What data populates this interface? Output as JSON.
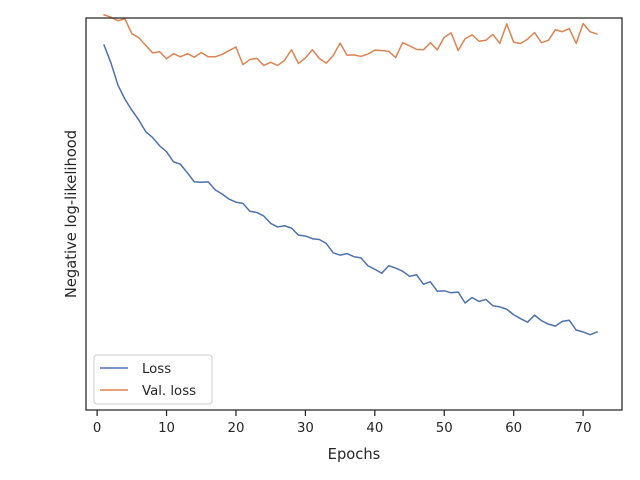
{
  "chart_data": {
    "type": "line",
    "title": "",
    "xlabel": "Epochs",
    "ylabel": "Negative log-likelihood",
    "xlim": [
      -1.6,
      75.6
    ],
    "ylim": [
      0.0,
      1.0
    ],
    "xticks": [
      0,
      10,
      20,
      30,
      40,
      50,
      60,
      70
    ],
    "y_tick_labels_shown": false,
    "grid": false,
    "legend": {
      "placement": "lower-left"
    },
    "x": [
      1,
      2,
      3,
      4,
      5,
      6,
      7,
      8,
      9,
      10,
      11,
      12,
      13,
      14,
      15,
      16,
      17,
      18,
      19,
      20,
      21,
      22,
      23,
      24,
      25,
      26,
      27,
      28,
      29,
      30,
      31,
      32,
      33,
      34,
      35,
      36,
      37,
      38,
      39,
      40,
      41,
      42,
      43,
      44,
      45,
      46,
      47,
      48,
      49,
      50,
      51,
      52,
      53,
      54,
      55,
      56,
      57,
      58,
      59,
      60,
      61,
      62,
      63,
      64,
      65,
      66,
      67,
      68,
      69,
      70,
      71,
      72
    ],
    "series": [
      {
        "name": "Loss",
        "color": "#4c72b0",
        "values": [
          0.931,
          0.885,
          0.829,
          0.793,
          0.765,
          0.74,
          0.71,
          0.695,
          0.674,
          0.659,
          0.633,
          0.627,
          0.605,
          0.582,
          0.581,
          0.582,
          0.562,
          0.551,
          0.538,
          0.53,
          0.527,
          0.507,
          0.504,
          0.495,
          0.476,
          0.467,
          0.47,
          0.464,
          0.446,
          0.444,
          0.437,
          0.435,
          0.425,
          0.401,
          0.395,
          0.399,
          0.391,
          0.388,
          0.368,
          0.359,
          0.349,
          0.368,
          0.362,
          0.354,
          0.341,
          0.345,
          0.321,
          0.327,
          0.303,
          0.304,
          0.299,
          0.301,
          0.273,
          0.287,
          0.277,
          0.282,
          0.266,
          0.263,
          0.257,
          0.243,
          0.233,
          0.224,
          0.242,
          0.228,
          0.219,
          0.214,
          0.226,
          0.229,
          0.204,
          0.199,
          0.192,
          0.199
        ]
      },
      {
        "name": "Val. loss",
        "color": "#dd8452",
        "values": [
          1.008,
          1.002,
          0.993,
          0.998,
          0.96,
          0.95,
          0.93,
          0.911,
          0.914,
          0.896,
          0.909,
          0.901,
          0.909,
          0.9,
          0.912,
          0.901,
          0.901,
          0.907,
          0.917,
          0.926,
          0.881,
          0.894,
          0.897,
          0.879,
          0.887,
          0.879,
          0.892,
          0.919,
          0.884,
          0.898,
          0.919,
          0.897,
          0.885,
          0.904,
          0.936,
          0.905,
          0.906,
          0.902,
          0.908,
          0.918,
          0.917,
          0.915,
          0.899,
          0.937,
          0.929,
          0.92,
          0.919,
          0.937,
          0.919,
          0.951,
          0.962,
          0.917,
          0.947,
          0.957,
          0.941,
          0.943,
          0.958,
          0.935,
          0.985,
          0.938,
          0.935,
          0.946,
          0.963,
          0.937,
          0.943,
          0.97,
          0.965,
          0.973,
          0.935,
          0.986,
          0.965,
          0.959
        ]
      }
    ]
  }
}
